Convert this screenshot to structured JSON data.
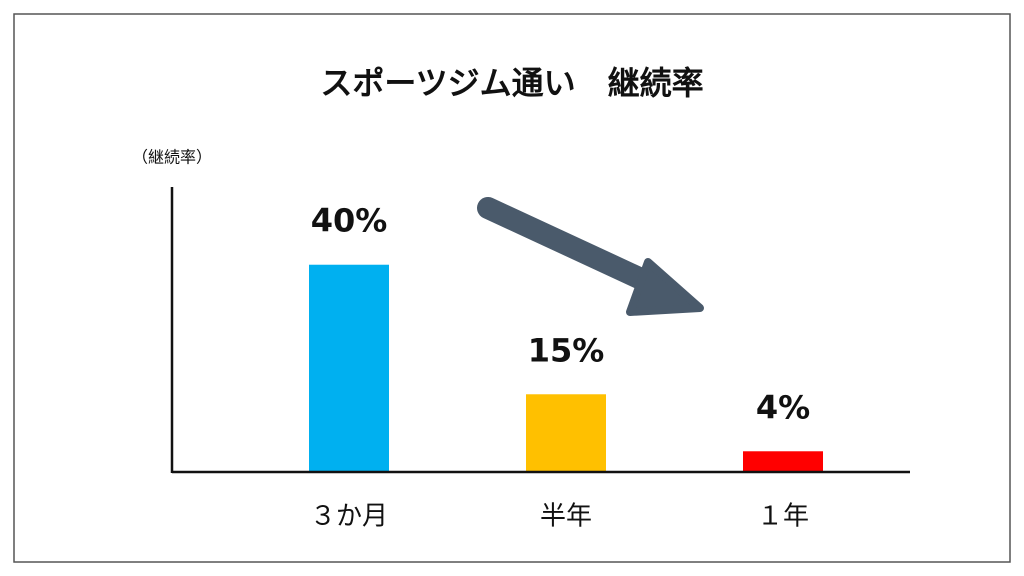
{
  "chart_data": {
    "type": "bar",
    "title": "スポーツジム通い　継続率",
    "y_label": "（継続率）",
    "categories": [
      "３か月",
      "半年",
      "１年"
    ],
    "values": [
      40,
      15,
      4
    ],
    "value_labels": [
      "40%",
      "15%",
      "4%"
    ],
    "colors": [
      "#00b0f0",
      "#ffc000",
      "#ff0000"
    ],
    "ylim": [
      0,
      55
    ],
    "grid": false
  }
}
